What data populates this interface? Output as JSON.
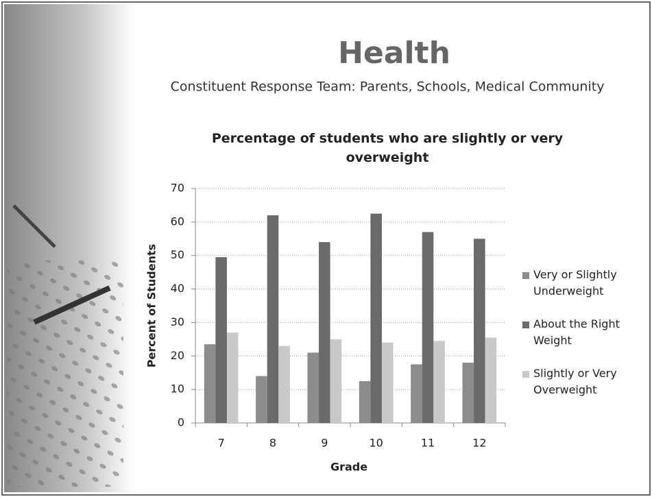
{
  "slide": {
    "title": "Health",
    "subtitle": "Constituent Response Team: Parents, Schools, Medical Community"
  },
  "chart_data": {
    "type": "bar",
    "title": "Percentage of students who are slightly or very overweight",
    "x_label": "Grade",
    "y_label": "Percent of Students",
    "categories": [
      "7",
      "8",
      "9",
      "10",
      "11",
      "12"
    ],
    "series": [
      {
        "name": "Very or Slightly Underweight",
        "color": "#8c8c8c",
        "values": [
          23.5,
          14,
          21,
          12.5,
          17.5,
          18
        ]
      },
      {
        "name": "About the Right Weight",
        "color": "#6a6a6a",
        "values": [
          49.5,
          62,
          54,
          62.5,
          57,
          55
        ]
      },
      {
        "name": "Slightly or Very Overweight",
        "color": "#c9c9c9",
        "values": [
          27,
          23,
          25,
          24,
          24.5,
          25.5
        ]
      }
    ],
    "ylim": [
      0,
      70
    ],
    "yticks": [
      0,
      10,
      20,
      30,
      40,
      50,
      60,
      70
    ],
    "grid": true,
    "legend": "right"
  }
}
